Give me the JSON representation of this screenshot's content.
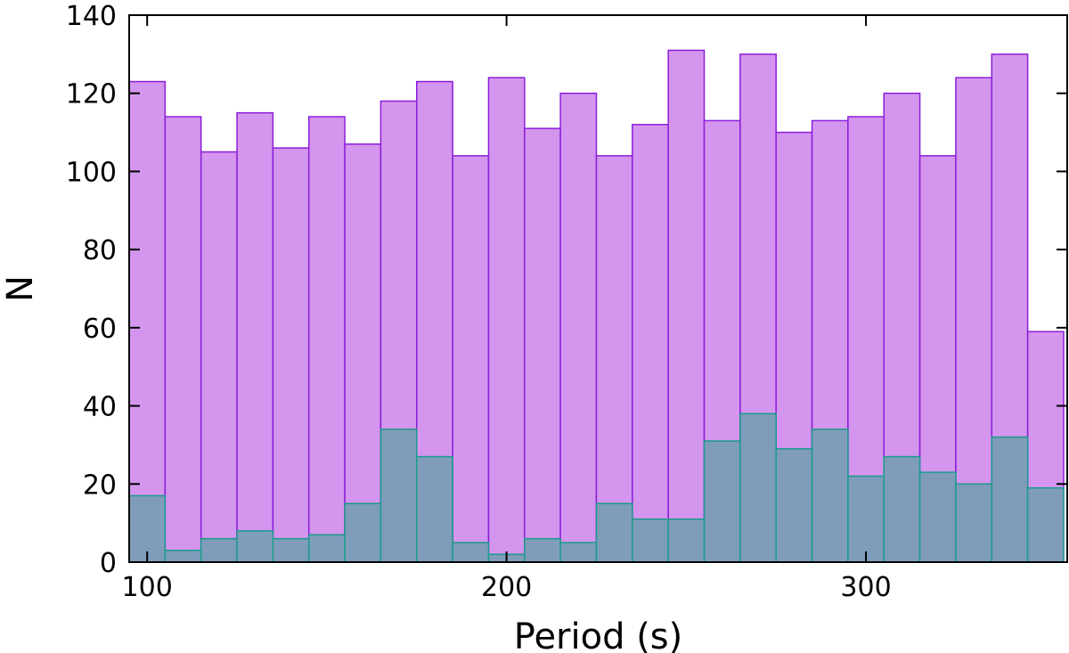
{
  "chart_data": {
    "type": "bar",
    "title": "",
    "xlabel": "Period (s)",
    "ylabel": "N",
    "xlim": [
      95,
      356
    ],
    "ylim": [
      0,
      140
    ],
    "bin_width": 10,
    "xticks": [
      100,
      200,
      300
    ],
    "yticks": [
      0,
      20,
      40,
      60,
      80,
      100,
      120,
      140
    ],
    "grid": false,
    "legend": "none",
    "bin_starts": [
      95,
      105,
      115,
      125,
      135,
      145,
      155,
      165,
      175,
      185,
      195,
      205,
      215,
      225,
      235,
      245,
      255,
      265,
      275,
      285,
      295,
      305,
      315,
      325,
      335,
      345
    ],
    "series": [
      {
        "fill": "#d495ee",
        "stroke": "#8a1fd8",
        "values": [
          123,
          114,
          105,
          115,
          106,
          114,
          107,
          118,
          123,
          104,
          124,
          111,
          120,
          104,
          112,
          131,
          113,
          130,
          110,
          113,
          114,
          120,
          104,
          124,
          130,
          59
        ]
      },
      {
        "fill": "#7f9cbb",
        "stroke": "#1a9c8a",
        "values": [
          17,
          3,
          6,
          8,
          6,
          7,
          15,
          34,
          27,
          5,
          2,
          6,
          5,
          15,
          11,
          11,
          31,
          38,
          29,
          34,
          22,
          27,
          23,
          20,
          32,
          19
        ]
      }
    ]
  }
}
